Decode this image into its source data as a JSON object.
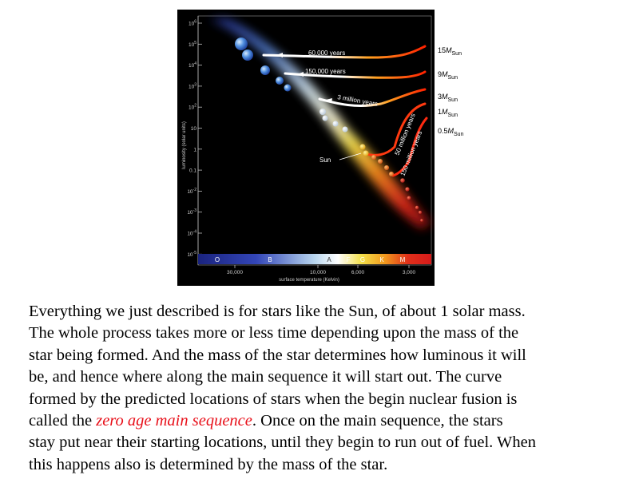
{
  "figure": {
    "y_axis_label": "luminosity (solar units)",
    "y_ticks": [
      {
        "base": "10",
        "exp": "6"
      },
      {
        "base": "10",
        "exp": "5"
      },
      {
        "base": "10",
        "exp": "4"
      },
      {
        "base": "10",
        "exp": "3"
      },
      {
        "base": "10",
        "exp": "2"
      },
      {
        "base": "10",
        "exp": ""
      },
      {
        "base": "1",
        "exp": ""
      },
      {
        "base": "0.1",
        "exp": ""
      },
      {
        "base": "10",
        "exp": "-2"
      },
      {
        "base": "10",
        "exp": "-3"
      },
      {
        "base": "10",
        "exp": "-4"
      },
      {
        "base": "10",
        "exp": "-5"
      }
    ],
    "spectral_classes": [
      "O",
      "B",
      "A",
      "F",
      "G",
      "K",
      "M"
    ],
    "x_ticks": [
      "30,000",
      "10,000",
      "6,000",
      "3,000"
    ],
    "x_axis_label": "surface temperature (Kelvin)",
    "track_labels": {
      "t1": "60,000 years",
      "t2": "150,000 years",
      "t3": "3 million years",
      "t4": "50 million years",
      "t5": "150 million years"
    },
    "sun_label": "Sun",
    "mass_labels": [
      {
        "value": "15",
        "symbol": "M",
        "sub": "Sun"
      },
      {
        "value": "9",
        "symbol": "M",
        "sub": "Sun"
      },
      {
        "value": "3",
        "symbol": "M",
        "sub": "Sun"
      },
      {
        "value": "1",
        "symbol": "M",
        "sub": "Sun"
      },
      {
        "value": "0.5",
        "symbol": "M",
        "sub": "Sun"
      }
    ]
  },
  "caption": {
    "line1": "Everything we just described is for stars like the Sun, of about 1 solar mass.",
    "line2": "The whole process takes more or less time depending upon the mass of the",
    "line3": "star being formed.  And the mass of the star determines how luminous it will",
    "line4": "be, and hence where along the main sequence it will start out.  The curve",
    "line5": "formed by the predicted locations of stars when the begin nuclear fusion is",
    "line6_before": "called the ",
    "line6_highlight": "zero age main sequence",
    "line6_after": ".  Once on the main sequence, the stars",
    "line7": "stay put near their starting locations, until they begin to run out of fuel.  When",
    "line8": "this happens also is determined by the mass of the star."
  }
}
